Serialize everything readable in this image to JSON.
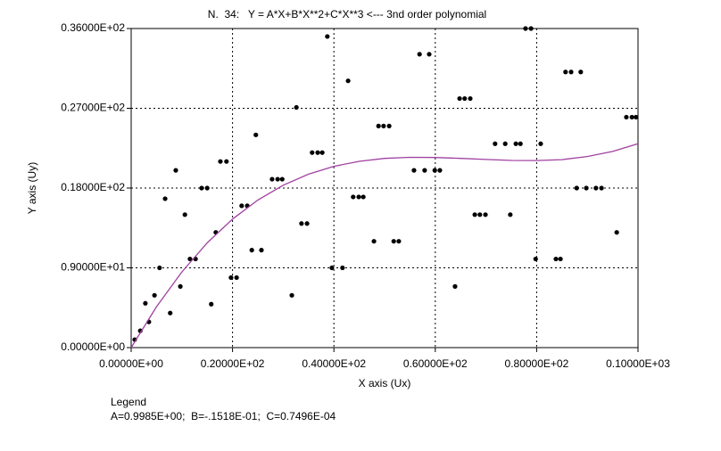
{
  "chart_data": {
    "type": "scatter",
    "title": "N.  34:   Y = A*X+B*X**2+C*X**3 <--- 3nd order polynomial",
    "x_label": "X axis (Ux)",
    "y_label": "Y axis (Uy)",
    "legend_title": "Legend",
    "legend_text": "A=0.9985E+00;  B=-.1518E-01;  C=0.7496E-04",
    "xlim": [
      0,
      100
    ],
    "ylim": [
      0,
      36
    ],
    "xticks": [
      {
        "value": 0,
        "label": "0.00000E+00"
      },
      {
        "value": 20,
        "label": "0.20000E+02"
      },
      {
        "value": 40,
        "label": "0.40000E+02"
      },
      {
        "value": 60,
        "label": "0.60000E+02"
      },
      {
        "value": 80,
        "label": "0.80000E+02"
      },
      {
        "value": 100,
        "label": "0.10000E+03"
      }
    ],
    "yticks": [
      {
        "value": 0,
        "label": "0.00000E+00"
      },
      {
        "value": 9,
        "label": "0.90000E+01"
      },
      {
        "value": 18,
        "label": "0.18000E+02"
      },
      {
        "value": 27,
        "label": "0.27000E+02"
      },
      {
        "value": 36,
        "label": "0.36000E+02"
      }
    ],
    "grid": true,
    "series": [
      {
        "type": "scatter",
        "color": "#000000",
        "x": [
          0.7,
          1.8,
          2.8,
          3.5,
          4.6,
          5.6,
          6.7,
          7.7,
          8.8,
          9.7,
          10.6,
          11.6,
          12.7,
          13.9,
          15.0,
          15.8,
          16.7,
          17.6,
          18.8,
          19.7,
          20.8,
          21.8,
          22.9,
          23.8,
          24.6,
          25.7,
          27.8,
          28.9,
          29.8,
          31.7,
          32.6,
          33.6,
          34.7,
          35.7,
          36.8,
          37.7,
          38.7,
          39.6,
          41.7,
          42.8,
          43.8,
          44.9,
          45.8,
          47.9,
          48.8,
          49.8,
          50.9,
          51.8,
          52.8,
          55.8,
          56.9,
          57.9,
          58.8,
          59.9,
          60.9,
          63.9,
          64.8,
          65.8,
          66.9,
          67.8,
          68.8,
          69.9,
          71.8,
          73.8,
          74.8,
          75.9,
          76.8,
          77.8,
          78.9,
          79.8,
          80.8,
          83.8,
          84.7,
          85.7,
          86.8,
          87.9,
          88.7,
          89.8,
          91.7,
          92.8,
          95.8,
          97.7,
          98.8,
          99.6
        ],
        "values": [
          0.9,
          1.9,
          5.0,
          2.9,
          5.9,
          9.0,
          16.8,
          3.9,
          20.0,
          6.9,
          15.0,
          10.0,
          10.0,
          18.0,
          18.0,
          4.9,
          13.0,
          21.0,
          21.0,
          7.9,
          7.9,
          16.0,
          16.0,
          11.0,
          24.0,
          11.0,
          19.0,
          19.0,
          19.0,
          5.9,
          27.1,
          14.0,
          14.0,
          22.0,
          22.0,
          22.0,
          35.1,
          9.0,
          9.0,
          30.1,
          17.0,
          17.0,
          17.0,
          12.0,
          25.0,
          25.0,
          25.0,
          12.0,
          12.0,
          20.0,
          33.1,
          20.0,
          33.1,
          20.0,
          20.0,
          6.9,
          28.1,
          28.1,
          28.1,
          15.0,
          15.0,
          15.0,
          23.0,
          23.0,
          15.0,
          23.0,
          23.0,
          36.0,
          36.0,
          10.0,
          23.0,
          10.0,
          10.0,
          31.1,
          31.1,
          18.0,
          31.1,
          18.0,
          18.0,
          18.0,
          13.0,
          26.0,
          26.0,
          26.0
        ]
      },
      {
        "type": "line",
        "color": "#a040a0",
        "x": [
          0,
          5,
          10,
          15,
          20,
          25,
          30,
          35,
          40,
          45,
          50,
          55,
          60,
          65,
          70,
          75,
          80,
          85,
          90,
          95,
          100
        ],
        "values": [
          0,
          4.62,
          8.54,
          11.82,
          14.5,
          16.65,
          18.32,
          19.57,
          20.45,
          21.02,
          21.35,
          21.47,
          21.45,
          21.35,
          21.23,
          21.12,
          21.11,
          21.21,
          21.56,
          22.13,
          23.01
        ]
      }
    ]
  }
}
